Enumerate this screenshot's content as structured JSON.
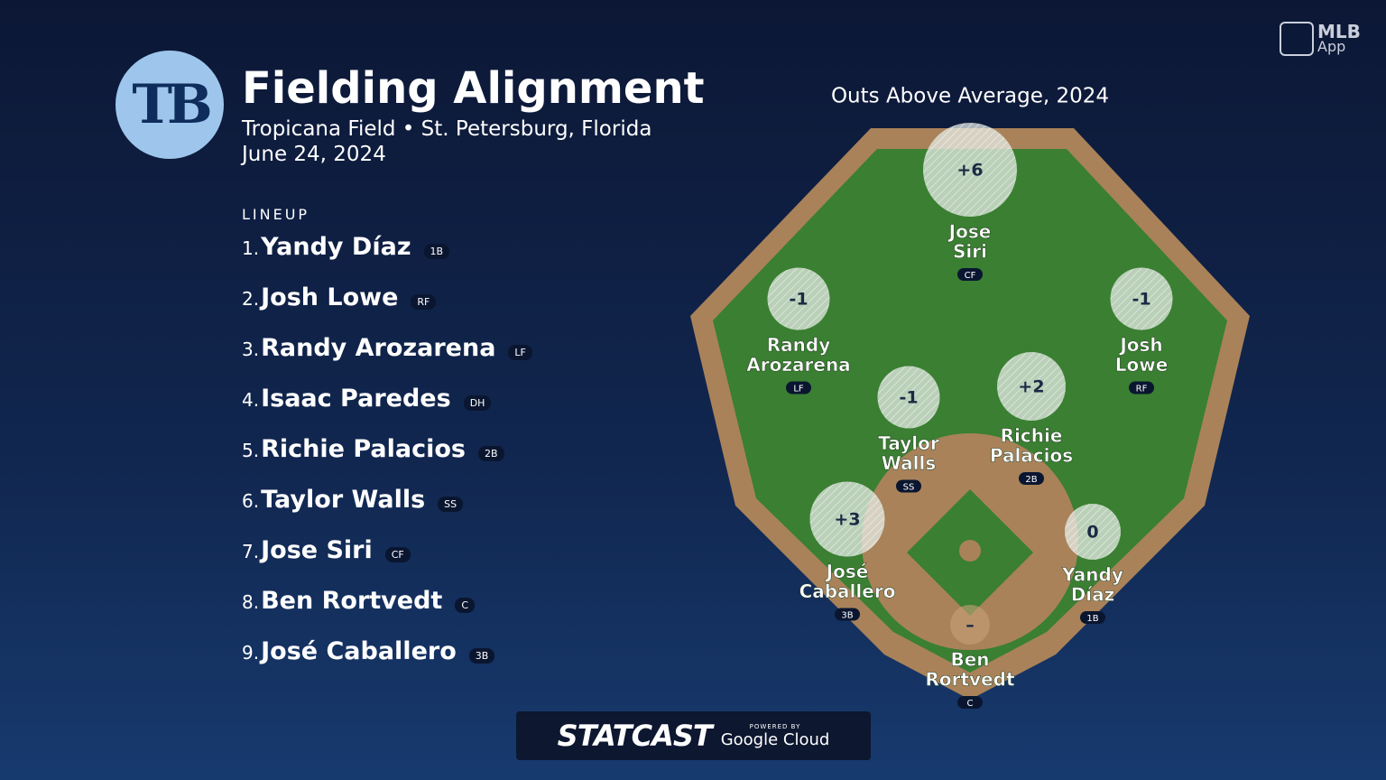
{
  "logo": "TB",
  "header": {
    "title": "Fielding Alignment",
    "subtitle": "Tropicana Field • St. Petersburg, Florida",
    "date": "June 24, 2024"
  },
  "branding": {
    "app_top": "MLB",
    "app_bottom": "App",
    "statcast": "STATCAST",
    "powered_by": "POWERED BY",
    "cloud": "Google Cloud"
  },
  "lineup": {
    "label": "LINEUP",
    "players": [
      {
        "order": "1.",
        "name": "Yandy Díaz",
        "pos": "1B"
      },
      {
        "order": "2.",
        "name": "Josh Lowe",
        "pos": "RF"
      },
      {
        "order": "3.",
        "name": "Randy Arozarena",
        "pos": "LF"
      },
      {
        "order": "4.",
        "name": "Isaac Paredes",
        "pos": "DH"
      },
      {
        "order": "5.",
        "name": "Richie Palacios",
        "pos": "2B"
      },
      {
        "order": "6.",
        "name": "Taylor Walls",
        "pos": "SS"
      },
      {
        "order": "7.",
        "name": "Jose Siri",
        "pos": "CF"
      },
      {
        "order": "8.",
        "name": "Ben Rortvedt",
        "pos": "C"
      },
      {
        "order": "9.",
        "name": "José Caballero",
        "pos": "3B"
      }
    ]
  },
  "field": {
    "title": "Outs Above Average, 2024",
    "positions": [
      {
        "name_lines": [
          "Jose",
          "Siri"
        ],
        "pos": "CF",
        "value": 6,
        "value_label": "+6"
      },
      {
        "name_lines": [
          "Randy",
          "Arozarena"
        ],
        "pos": "LF",
        "value": -1
      },
      {
        "name_lines": [
          "Josh",
          "Lowe"
        ],
        "pos": "RF",
        "value": -1
      },
      {
        "name_lines": [
          "Taylor",
          "Walls"
        ],
        "pos": "SS",
        "value": -1
      },
      {
        "name_lines": [
          "Richie",
          "Palacios"
        ],
        "pos": "2B",
        "value": 2,
        "value_label": "+2"
      },
      {
        "name_lines": [
          "José",
          "Caballero"
        ],
        "pos": "3B",
        "value": 3,
        "value_label": "+3"
      },
      {
        "name_lines": [
          "Yandy",
          "Díaz"
        ],
        "pos": "1B",
        "value": 0
      },
      {
        "name_lines": [
          "Ben",
          "Rortvedt"
        ],
        "pos": "C",
        "value": null,
        "value_label": "–"
      }
    ]
  }
}
